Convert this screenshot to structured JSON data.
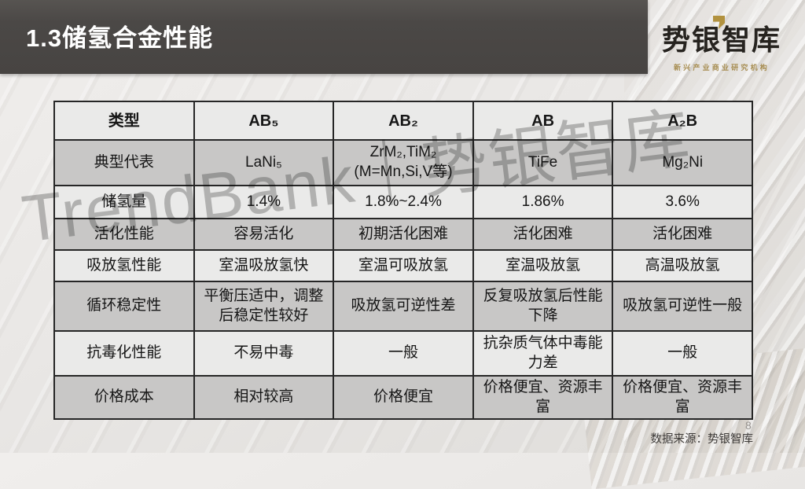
{
  "slide": {
    "title": "1.3储氢合金性能",
    "page_number": "8",
    "source_note": "数据来源：势银智库"
  },
  "logo": {
    "name": "势银智库",
    "tagline": "新兴产业商业研究机构"
  },
  "watermark": "TrendBank｜势银智库",
  "table": {
    "header": [
      "类型",
      "AB₅",
      "AB₂",
      "AB",
      "A₂B"
    ],
    "rows": [
      {
        "label": "典型代表",
        "cells": [
          "LaNi₅",
          "ZrM₂,TiM₂\n(M=Mn,Si,V等)",
          "TiFe",
          "Mg₂Ni"
        ]
      },
      {
        "label": "储氢量",
        "cells": [
          "1.4%",
          "1.8%~2.4%",
          "1.86%",
          "3.6%"
        ]
      },
      {
        "label": "活化性能",
        "cells": [
          "容易活化",
          "初期活化困难",
          "活化困难",
          "活化困难"
        ]
      },
      {
        "label": "吸放氢性能",
        "cells": [
          "室温吸放氢快",
          "室温可吸放氢",
          "室温吸放氢",
          "高温吸放氢"
        ]
      },
      {
        "label": "循环稳定性",
        "cells": [
          "平衡压适中，调整后稳定性较好",
          "吸放氢可逆性差",
          "反复吸放氢后性能下降",
          "吸放氢可逆性一般"
        ]
      },
      {
        "label": "抗毒化性能",
        "cells": [
          "不易中毒",
          "一般",
          "抗杂质气体中毒能力差",
          "一般"
        ]
      },
      {
        "label": "价格成本",
        "cells": [
          "相对较高",
          "价格便宜",
          "价格便宜、资源丰富",
          "价格便宜、资源丰富"
        ]
      }
    ]
  },
  "colors": {
    "title_bar": "#4b4846",
    "accent_gold": "#b2923f",
    "row_light": "#eaeae9",
    "row_dark": "#c8c7c6",
    "table_border": "#262626",
    "watermark_gray": "#6c6c6c"
  }
}
